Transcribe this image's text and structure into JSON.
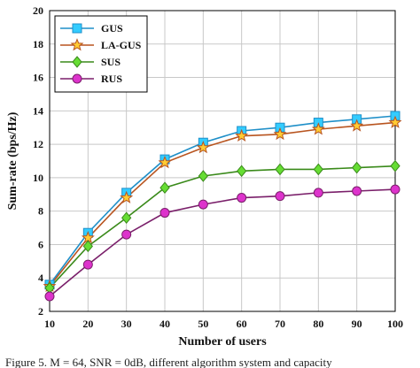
{
  "chart_data": {
    "type": "line",
    "xlabel": "Number of users",
    "ylabel": "Sum-rate (bps/Hz)",
    "xlim": [
      10,
      100
    ],
    "ylim": [
      2,
      20
    ],
    "xticks": [
      10,
      20,
      30,
      40,
      50,
      60,
      70,
      80,
      90,
      100
    ],
    "yticks": [
      2,
      4,
      6,
      8,
      10,
      12,
      14,
      16,
      18,
      20
    ],
    "grid": true,
    "legend_position": "top-left",
    "x": [
      10,
      20,
      30,
      40,
      50,
      60,
      70,
      80,
      90,
      100
    ],
    "series": [
      {
        "name": "GUS",
        "color": "#1f8fc8",
        "fill": "#33ccff",
        "marker": "square",
        "values": [
          3.6,
          6.7,
          9.1,
          11.1,
          12.1,
          12.8,
          13.0,
          13.3,
          13.5,
          13.7
        ]
      },
      {
        "name": "LA-GUS",
        "color": "#b8541f",
        "fill": "#ffcc33",
        "marker": "star",
        "values": [
          3.5,
          6.4,
          8.8,
          10.9,
          11.8,
          12.5,
          12.6,
          12.9,
          13.1,
          13.3
        ]
      },
      {
        "name": "SUS",
        "color": "#3a8a1a",
        "fill": "#66dd33",
        "marker": "diamond",
        "values": [
          3.4,
          5.9,
          7.6,
          9.4,
          10.1,
          10.4,
          10.5,
          10.5,
          10.6,
          10.7
        ]
      },
      {
        "name": "RUS",
        "color": "#7a1f6a",
        "fill": "#dd33cc",
        "marker": "circle",
        "values": [
          2.9,
          4.8,
          6.6,
          7.9,
          8.4,
          8.8,
          8.9,
          9.1,
          9.2,
          9.3
        ]
      }
    ]
  },
  "caption": "Figure 5.   M = 64, SNR = 0dB, different algorithm system and capacity"
}
